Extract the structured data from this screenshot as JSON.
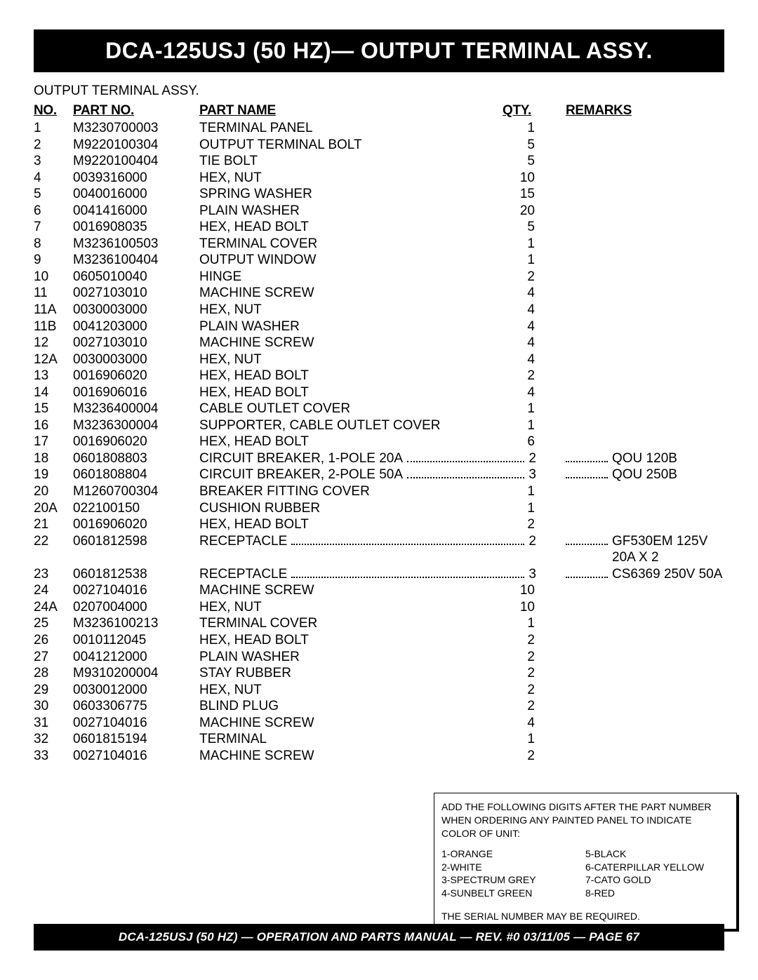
{
  "header": {
    "title": "DCA-125USJ (50 HZ)— OUTPUT TERMINAL ASSY."
  },
  "section": {
    "subtitle": "OUTPUT TERMINAL ASSY."
  },
  "table": {
    "headers": {
      "no": "NO.",
      "partno": "PART NO.",
      "partname": "PART NAME",
      "qty": "QTY.",
      "remarks": "REMARKS"
    },
    "rows": [
      {
        "no": "1",
        "pn": "M3230700003",
        "name": "TERMINAL PANEL",
        "qty": "1",
        "rem": "",
        "leader": false
      },
      {
        "no": "2",
        "pn": "M9220100304",
        "name": "OUTPUT TERMINAL BOLT",
        "qty": "5",
        "rem": "",
        "leader": false
      },
      {
        "no": "3",
        "pn": "M9220100404",
        "name": "TIE BOLT",
        "qty": "5",
        "rem": "",
        "leader": false
      },
      {
        "no": "4",
        "pn": "0039316000",
        "name": "HEX, NUT",
        "qty": "10",
        "rem": "",
        "leader": false
      },
      {
        "no": "5",
        "pn": "0040016000",
        "name": "SPRING WASHER",
        "qty": "15",
        "rem": "",
        "leader": false
      },
      {
        "no": "6",
        "pn": "0041416000",
        "name": "PLAIN WASHER",
        "qty": "20",
        "rem": "",
        "leader": false
      },
      {
        "no": "7",
        "pn": "0016908035",
        "name": "HEX, HEAD BOLT",
        "qty": "5",
        "rem": "",
        "leader": false
      },
      {
        "no": "8",
        "pn": "M3236100503",
        "name": "TERMINAL COVER",
        "qty": "1",
        "rem": "",
        "leader": false
      },
      {
        "no": "9",
        "pn": "M3236100404",
        "name": "OUTPUT WINDOW",
        "qty": "1",
        "rem": "",
        "leader": false
      },
      {
        "no": "10",
        "pn": "0605010040",
        "name": "HINGE",
        "qty": "2",
        "rem": "",
        "leader": false
      },
      {
        "no": "11",
        "pn": "0027103010",
        "name": "MACHINE SCREW",
        "qty": "4",
        "rem": "",
        "leader": false
      },
      {
        "no": "11A",
        "pn": "0030003000",
        "name": "HEX, NUT",
        "qty": "4",
        "rem": "",
        "leader": false
      },
      {
        "no": "11B",
        "pn": "0041203000",
        "name": "PLAIN WASHER",
        "qty": "4",
        "rem": "",
        "leader": false
      },
      {
        "no": "12",
        "pn": "0027103010",
        "name": "MACHINE SCREW",
        "qty": "4",
        "rem": "",
        "leader": false
      },
      {
        "no": "12A",
        "pn": "0030003000",
        "name": "HEX, NUT",
        "qty": "4",
        "rem": "",
        "leader": false
      },
      {
        "no": "13",
        "pn": "0016906020",
        "name": "HEX, HEAD BOLT",
        "qty": "2",
        "rem": "",
        "leader": false
      },
      {
        "no": "14",
        "pn": "0016906016",
        "name": "HEX, HEAD BOLT",
        "qty": "4",
        "rem": "",
        "leader": false
      },
      {
        "no": "15",
        "pn": "M3236400004",
        "name": "CABLE OUTLET COVER",
        "qty": "1",
        "rem": "",
        "leader": false
      },
      {
        "no": "16",
        "pn": "M3236300004",
        "name": "SUPPORTER, CABLE OUTLET COVER",
        "qty": "1",
        "rem": "",
        "leader": false
      },
      {
        "no": "17",
        "pn": "0016906020",
        "name": "HEX, HEAD BOLT",
        "qty": "6",
        "rem": "",
        "leader": false
      },
      {
        "no": "18",
        "pn": "0601808803",
        "name": "CIRCUIT BREAKER, 1-POLE 20A",
        "qty": "2",
        "rem": "QOU 120B",
        "leader": true
      },
      {
        "no": "19",
        "pn": "0601808804",
        "name": "CIRCUIT BREAKER, 2-POLE 50A",
        "qty": "3",
        "rem": "QOU 250B",
        "leader": true
      },
      {
        "no": "20",
        "pn": "M1260700304",
        "name": "BREAKER FITTING COVER",
        "qty": "1",
        "rem": "",
        "leader": false
      },
      {
        "no": "20A",
        "pn": "022100150",
        "name": "CUSHION RUBBER",
        "qty": "1",
        "rem": "",
        "leader": false
      },
      {
        "no": "21",
        "pn": "0016906020",
        "name": "HEX, HEAD BOLT",
        "qty": "2",
        "rem": "",
        "leader": false
      },
      {
        "no": "22",
        "pn": "0601812598",
        "name": "RECEPTACLE",
        "qty": "2",
        "rem": "GF530EM 125V 20A X 2",
        "leader": true
      },
      {
        "no": "23",
        "pn": "0601812538",
        "name": "RECEPTACLE",
        "qty": "3",
        "rem": "CS6369 250V 50A",
        "leader": true
      },
      {
        "no": "24",
        "pn": "0027104016",
        "name": "MACHINE SCREW",
        "qty": "10",
        "rem": "",
        "leader": false
      },
      {
        "no": "24A",
        "pn": "0207004000",
        "name": "HEX, NUT",
        "qty": "10",
        "rem": "",
        "leader": false
      },
      {
        "no": "25",
        "pn": "M3236100213",
        "name": "TERMINAL COVER",
        "qty": "1",
        "rem": "",
        "leader": false
      },
      {
        "no": "26",
        "pn": "0010112045",
        "name": "HEX, HEAD BOLT",
        "qty": "2",
        "rem": "",
        "leader": false
      },
      {
        "no": "27",
        "pn": "0041212000",
        "name": "PLAIN WASHER",
        "qty": "2",
        "rem": "",
        "leader": false
      },
      {
        "no": "28",
        "pn": "M9310200004",
        "name": "STAY RUBBER",
        "qty": "2",
        "rem": "",
        "leader": false
      },
      {
        "no": "29",
        "pn": "0030012000",
        "name": "HEX, NUT",
        "qty": "2",
        "rem": "",
        "leader": false
      },
      {
        "no": "30",
        "pn": "0603306775",
        "name": "BLIND PLUG",
        "qty": "2",
        "rem": "",
        "leader": false
      },
      {
        "no": "31",
        "pn": "0027104016",
        "name": "MACHINE SCREW",
        "qty": "4",
        "rem": "",
        "leader": false
      },
      {
        "no": "32",
        "pn": "0601815194",
        "name": "TERMINAL",
        "qty": "1",
        "rem": "",
        "leader": false
      },
      {
        "no": "33",
        "pn": "0027104016",
        "name": "MACHINE SCREW",
        "qty": "2",
        "rem": "",
        "leader": false
      }
    ]
  },
  "notebox": {
    "intro": "ADD THE FOLLOWING DIGITS AFTER THE PART NUMBER WHEN ORDERING ANY PAINTED PANEL TO INDICATE COLOR OF UNIT:",
    "left": [
      "1-ORANGE",
      "2-WHITE",
      "3-SPECTRUM GREY",
      "4-SUNBELT GREEN"
    ],
    "right": [
      "5-BLACK",
      "6-CATERPILLAR YELLOW",
      "7-CATO GOLD",
      "8-RED"
    ],
    "serial": "THE SERIAL NUMBER MAY BE REQUIRED."
  },
  "footer": {
    "text": "DCA-125USJ (50 HZ) — OPERATION AND PARTS MANUAL — REV. #0  03/11/05 — PAGE 67"
  }
}
